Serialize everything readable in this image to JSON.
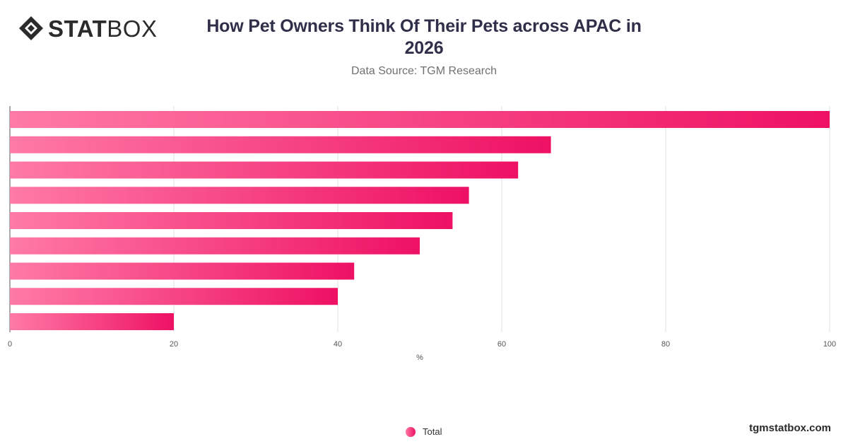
{
  "header": {
    "logo_bold": "STAT",
    "logo_light": "BOX",
    "title": "How Pet Owners Think Of Their Pets across APAC in 2026",
    "subtitle": "Data Source: TGM Research"
  },
  "chart_data": {
    "type": "bar",
    "orientation": "horizontal",
    "title": "How Pet Owners Think Of Their Pets across APAC in 2026",
    "subtitle": "Data Source: TGM Research",
    "xlabel": "%",
    "ylabel": "",
    "xlim": [
      0,
      100
    ],
    "x_ticks": [
      0,
      20,
      40,
      60,
      80,
      100
    ],
    "grid": true,
    "legend_position": "bottom",
    "categories": [
      "",
      "",
      "",
      "",
      "",
      "",
      "",
      "",
      ""
    ],
    "series": [
      {
        "name": "Total",
        "values": [
          100,
          66,
          62,
          56,
          54,
          50,
          42,
          40,
          20
        ]
      }
    ],
    "bar_gradient": [
      "#ff7aa6",
      "#ee1164"
    ]
  },
  "legend": {
    "label": "Total"
  },
  "footer": {
    "site": "tgmstatbox.com"
  }
}
